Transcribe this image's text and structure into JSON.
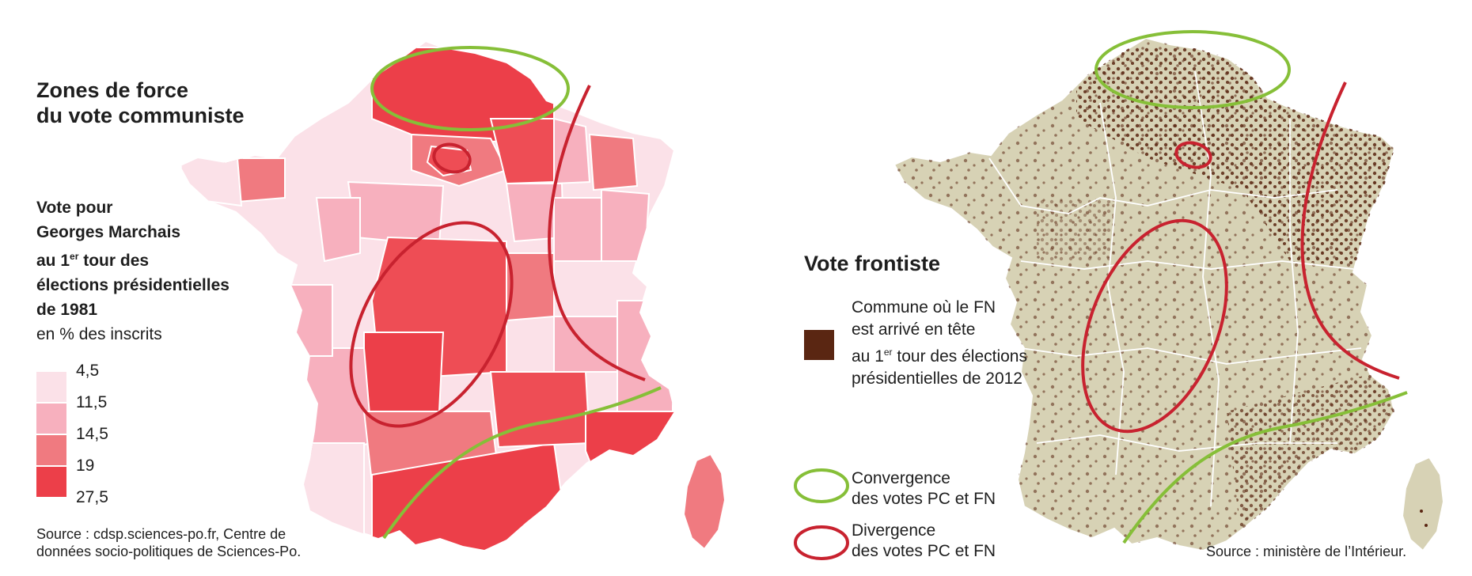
{
  "left": {
    "title_line1": "Zones de force",
    "title_line2": "du vote communiste",
    "legend_title_line1": "Vote pour",
    "legend_title_line2": "Georges Marchais",
    "legend_title_line3_pre": "au 1",
    "legend_title_line3_sup": "er",
    "legend_title_line3_post": " tour des",
    "legend_title_line4": "élections présidentielles",
    "legend_title_line5": "de 1981",
    "legend_unit": "en % des inscrits",
    "classes": [
      {
        "label": "4,5",
        "color": "#fbe1e8"
      },
      {
        "label": "11,5",
        "color": "#f7b0be"
      },
      {
        "label": "14,5",
        "color": "#f07a80"
      },
      {
        "label": "19",
        "color": "#ee4d55"
      },
      {
        "label": "27,5",
        "color": "#ec3f49"
      }
    ],
    "source_line1": "Source : cdsp.sciences-po.fr, Centre de",
    "source_line2": "données socio-politiques de Sciences-Po."
  },
  "right": {
    "title": "Vote frontiste",
    "fn_legend_line1": "Commune où le FN",
    "fn_legend_line2": "est arrivé en tête",
    "fn_legend_line3_pre": "au 1",
    "fn_legend_line3_sup": "er",
    "fn_legend_line3_post": " tour des élections",
    "fn_legend_line4": "présidentielles de 2012",
    "fn_color": "#5a2612",
    "convergence_line1": "Convergence",
    "convergence_line2": "des votes PC et FN",
    "divergence_line1": "Divergence",
    "divergence_line2": "des votes PC et FN",
    "source": "Source : ministère de l’Intérieur."
  },
  "colors": {
    "convergence": "#86bf38",
    "divergence": "#c8222f",
    "fn_background": "#d7d2b5"
  }
}
